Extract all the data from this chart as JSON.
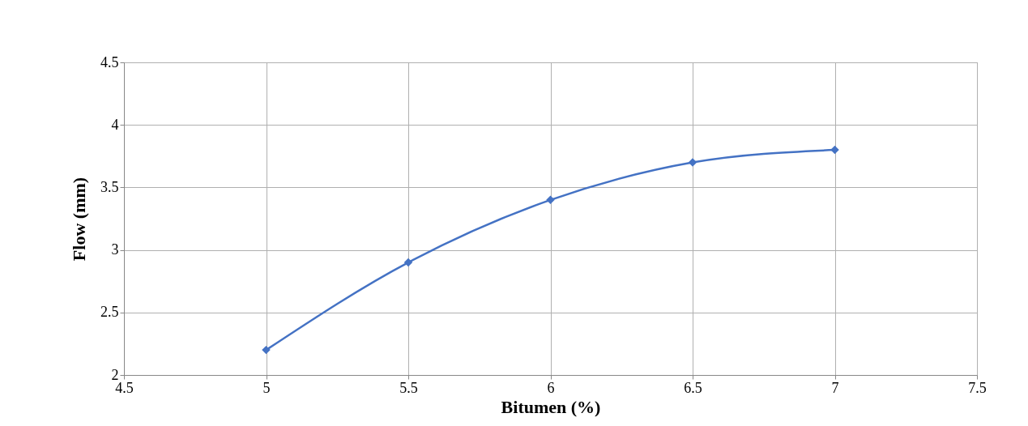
{
  "chart_data": {
    "type": "line",
    "xlabel": "Bitumen (%)",
    "ylabel": "Flow (mm)",
    "x": [
      5,
      5.5,
      6,
      6.5,
      7
    ],
    "series": [
      {
        "color": "#4472c4",
        "values": [
          2.2,
          2.9,
          3.4,
          3.7,
          3.8
        ]
      }
    ],
    "xlim": [
      4.5,
      7.5
    ],
    "xticks": [
      4.5,
      5,
      5.5,
      6,
      6.5,
      7,
      7.5
    ],
    "ylim": [
      2,
      4.5
    ],
    "yticks": [
      2,
      2.5,
      3,
      3.5,
      4,
      4.5
    ],
    "grid": true,
    "marker": "diamond",
    "line_style": "solid"
  }
}
